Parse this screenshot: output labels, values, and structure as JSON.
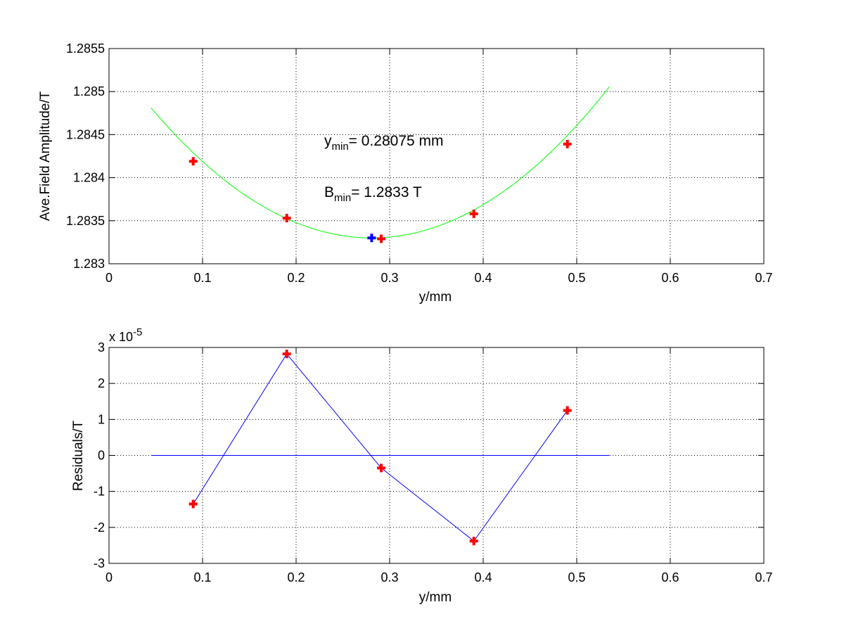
{
  "chart_data": [
    {
      "type": "scatter",
      "title": "",
      "xlabel": "y/mm",
      "ylabel": "Ave.Field Amplitude/T",
      "xlim": [
        0,
        0.7
      ],
      "ylim": [
        1.283,
        1.2855
      ],
      "xticks": [
        0,
        0.1,
        0.2,
        0.3,
        0.4,
        0.5,
        0.6,
        0.7
      ],
      "xtick_labels": [
        "0",
        "0.1",
        "0.2",
        "0.3",
        "0.4",
        "0.5",
        "0.6",
        "0.7"
      ],
      "yticks": [
        1.283,
        1.2835,
        1.284,
        1.2845,
        1.285,
        1.2855
      ],
      "ytick_labels": [
        "1.283",
        "1.2835",
        "1.284",
        "1.2845",
        "1.285",
        "1.2855"
      ],
      "grid": true,
      "points": {
        "x": [
          0.09,
          0.19,
          0.291,
          0.39,
          0.49
        ],
        "y": [
          1.28419,
          1.28353,
          1.28329,
          1.28358,
          1.28439
        ],
        "color": "#ff0000",
        "marker": "plus"
      },
      "fit_curve": {
        "type": "quadratic",
        "vertex_x": 0.28075,
        "vertex_y": 1.2833,
        "a": 0.02718,
        "x_range": [
          0.045,
          0.535
        ],
        "color": "#00ff00"
      },
      "minimum_point": {
        "x": 0.28075,
        "y": 1.2833,
        "color": "#0000ff",
        "marker": "plus"
      },
      "annotations": [
        {
          "base": "y",
          "sub": "min",
          "text": "= 0.28075 mm"
        },
        {
          "base": "B",
          "sub": "min",
          "text": "= 1.2833 T"
        }
      ]
    },
    {
      "type": "line",
      "title": "",
      "xlabel": "y/mm",
      "ylabel": "Residuals/T",
      "scale_label": {
        "base": "x 10",
        "exponent": "-5"
      },
      "xlim": [
        0,
        0.7
      ],
      "ylim": [
        -3,
        3
      ],
      "xticks": [
        0,
        0.1,
        0.2,
        0.3,
        0.4,
        0.5,
        0.6,
        0.7
      ],
      "xtick_labels": [
        "0",
        "0.1",
        "0.2",
        "0.3",
        "0.4",
        "0.5",
        "0.6",
        "0.7"
      ],
      "yticks": [
        -3,
        -2,
        -1,
        0,
        1,
        2,
        3
      ],
      "ytick_labels": [
        "-3",
        "-2",
        "-1",
        "0",
        "1",
        "2",
        "3"
      ],
      "grid": true,
      "series": [
        {
          "x": [
            0.09,
            0.19,
            0.291,
            0.39,
            0.49
          ],
          "y": [
            -1.35,
            2.82,
            -0.35,
            -2.38,
            1.25
          ],
          "line_color": "#0000ff",
          "marker_color": "#ff0000",
          "marker": "plus"
        }
      ],
      "zero_line": {
        "y": 0,
        "x_range": [
          0.045,
          0.535
        ],
        "color": "#0000ff"
      }
    }
  ]
}
